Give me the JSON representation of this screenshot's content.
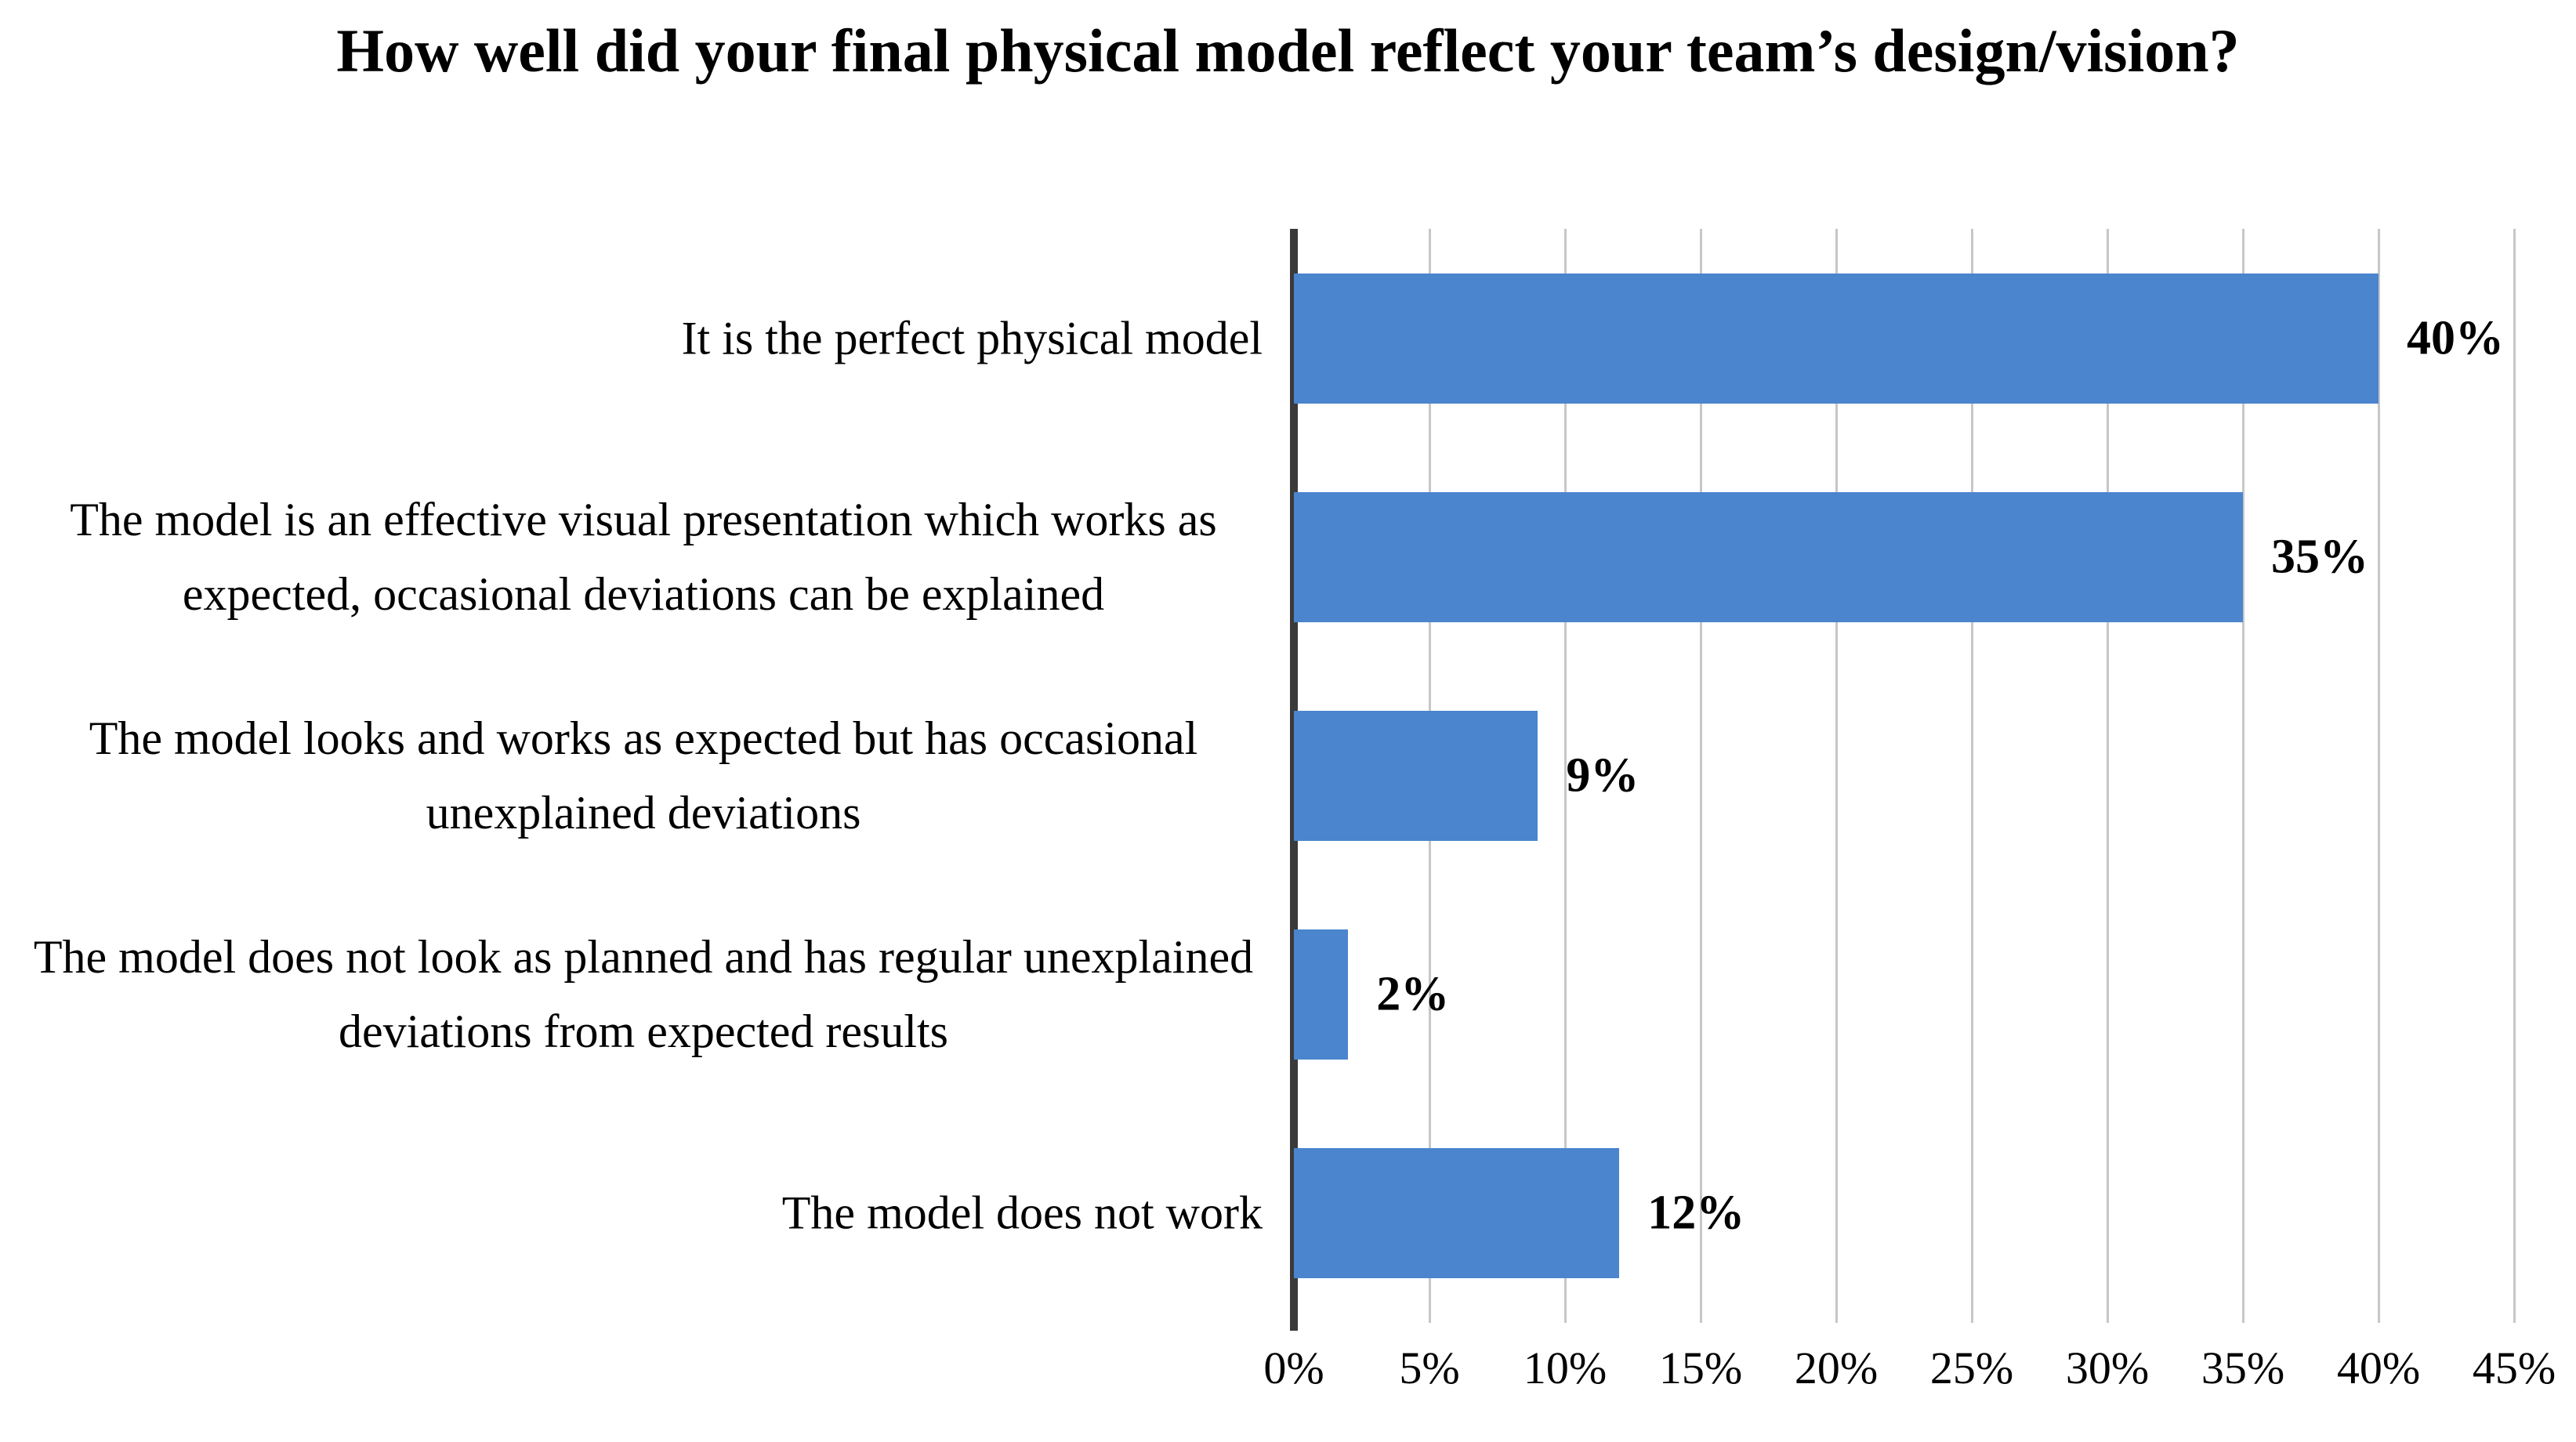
{
  "chart_data": {
    "type": "bar",
    "orientation": "horizontal",
    "title": "How well did your final physical model reflect your team’s design/vision?",
    "categories": [
      "It is the perfect physical model",
      "The model is an effective visual presentation which works as expected, occasional deviations can be explained",
      "The model looks and works as expected but has occasional unexplained deviations",
      "The model does not look as planned and has regular unexplained deviations from expected results",
      "The model does not work"
    ],
    "values": [
      40,
      35,
      9,
      2,
      12
    ],
    "value_labels": [
      "40%",
      "35%",
      "9%",
      "2%",
      "12%"
    ],
    "x_ticks": [
      "0%",
      "5%",
      "10%",
      "15%",
      "20%",
      "25%",
      "30%",
      "35%",
      "40%",
      "45%"
    ],
    "tick_values": [
      0,
      5,
      10,
      15,
      20,
      25,
      30,
      35,
      40,
      45
    ],
    "xlim": [
      0,
      45
    ],
    "grid": true,
    "legend": false,
    "bar_color": "#4a85ce",
    "axis_color": "#3a3a3a",
    "gridline_color": "#c7c7c7",
    "text_color": "#000000"
  }
}
